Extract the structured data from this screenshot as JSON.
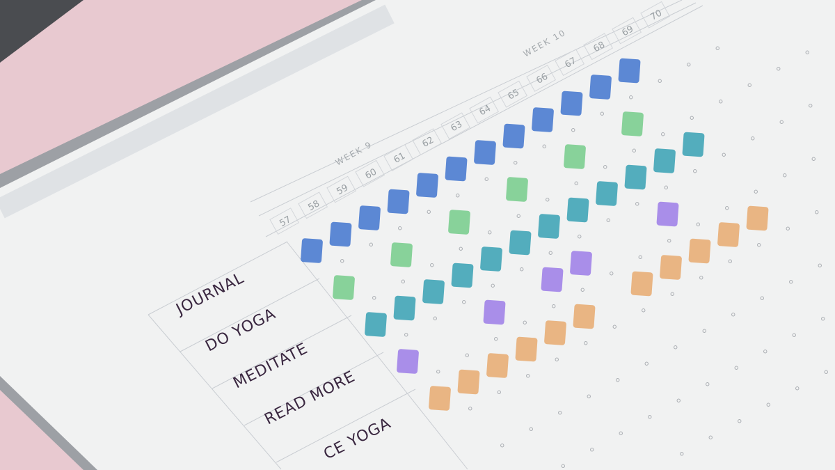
{
  "weeks": [
    "WEEK 9",
    "WEEK 10"
  ],
  "days": [
    "57",
    "58",
    "59",
    "60",
    "61",
    "62",
    "63",
    "64",
    "65",
    "66",
    "67",
    "68",
    "69",
    "70"
  ],
  "habits": [
    {
      "label": "JOURNAL",
      "color": "#4f7fd1",
      "done_days": [
        "57",
        "58",
        "59",
        "60",
        "61",
        "62",
        "63",
        "64",
        "65",
        "66",
        "67",
        "68"
      ]
    },
    {
      "label": "DO YOGA",
      "color": "#7fcf92",
      "done_days": [
        "57",
        "59",
        "61",
        "63",
        "65",
        "67"
      ]
    },
    {
      "label": "MEDITATE",
      "color": "#45a7b8",
      "done_days": [
        "57",
        "58",
        "59",
        "60",
        "61",
        "62",
        "63",
        "64",
        "65",
        "66",
        "67",
        "68"
      ]
    },
    {
      "label": "READ MORE",
      "color": "#a386e8",
      "done_days": [
        "57",
        "60",
        "62",
        "63",
        "66"
      ]
    },
    {
      "label": "CE YOGA",
      "color": "#e8b07a",
      "done_days": [
        "57",
        "58",
        "59",
        "60",
        "61",
        "62",
        "64",
        "65",
        "66",
        "67",
        "68"
      ]
    }
  ],
  "colors": {
    "background_pink": "#e8c9d0",
    "page": "#f1f2f2",
    "grid_line": "#c9cdd2",
    "ink": "#3a2740"
  }
}
